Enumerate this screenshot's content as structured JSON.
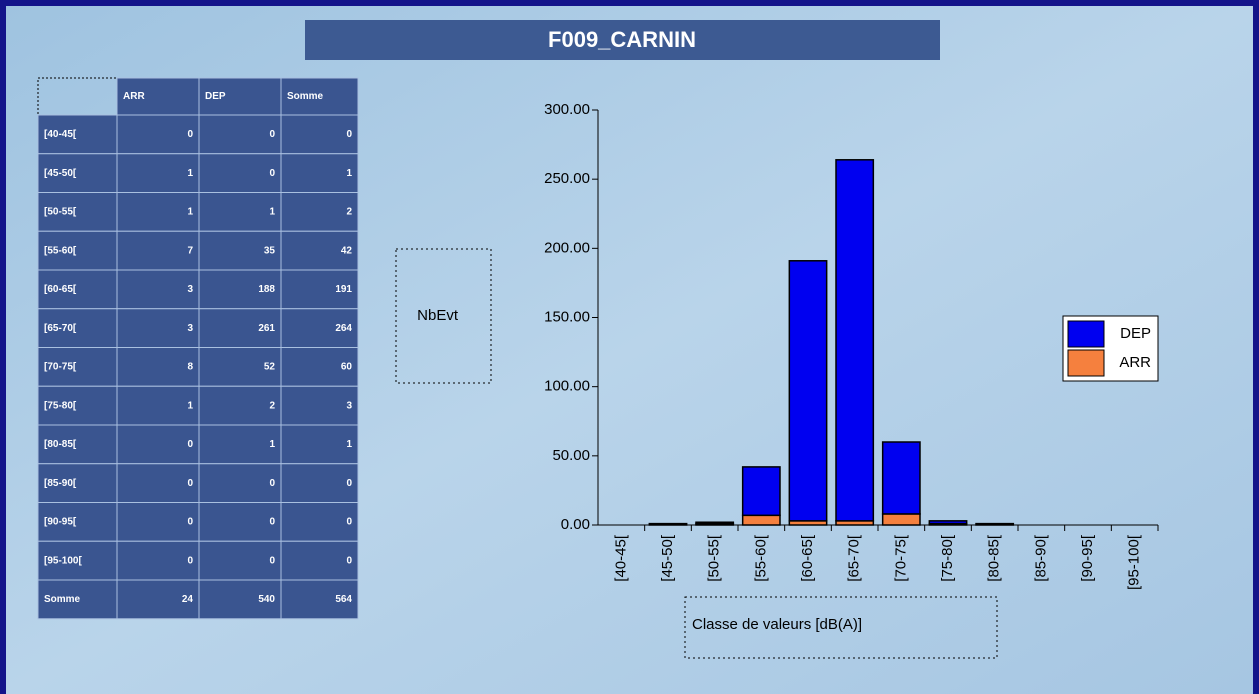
{
  "title": "F009_CARNIN",
  "table": {
    "columns": [
      "ARR",
      "DEP",
      "Somme"
    ],
    "rows": [
      [
        "[40-45[",
        0,
        0,
        0
      ],
      [
        "[45-50[",
        1,
        0,
        1
      ],
      [
        "[50-55[",
        1,
        1,
        2
      ],
      [
        "[55-60[",
        7,
        35,
        42
      ],
      [
        "[60-65[",
        3,
        188,
        191
      ],
      [
        "[65-70[",
        3,
        261,
        264
      ],
      [
        "[70-75[",
        8,
        52,
        60
      ],
      [
        "[75-80[",
        1,
        2,
        3
      ],
      [
        "[80-85[",
        0,
        1,
        1
      ],
      [
        "[85-90[",
        0,
        0,
        0
      ],
      [
        "[90-95[",
        0,
        0,
        0
      ],
      [
        "[95-100[",
        0,
        0,
        0
      ]
    ],
    "footer": [
      "Somme",
      24,
      540,
      564
    ]
  },
  "chart_data": {
    "type": "stacked_bar",
    "ylabel": "NbEvt",
    "xlabel": "Classe de valeurs [dB(A)]",
    "categories": [
      "[40-45[",
      "[45-50[",
      "[50-55[",
      "[55-60[",
      "[60-65[",
      "[65-70[",
      "[70-75[",
      "[75-80[",
      "[80-85[",
      "[85-90[",
      "[90-95[",
      "[95-100["
    ],
    "series": [
      {
        "name": "ARR",
        "color": "#f5803e",
        "values": [
          0,
          1,
          1,
          7,
          3,
          3,
          8,
          1,
          0,
          0,
          0,
          0
        ]
      },
      {
        "name": "DEP",
        "color": "#0000f0",
        "values": [
          0,
          0,
          1,
          35,
          188,
          261,
          52,
          2,
          1,
          0,
          0,
          0
        ]
      }
    ],
    "ylim": [
      0,
      300
    ],
    "yticks": [
      {
        "value": 0,
        "label": "0.00"
      },
      {
        "value": 50,
        "label": "50.00"
      },
      {
        "value": 100,
        "label": "100.00"
      },
      {
        "value": 150,
        "label": "150.00"
      },
      {
        "value": 200,
        "label": "200.00"
      },
      {
        "value": 250,
        "label": "250.00"
      },
      {
        "value": 300,
        "label": "300.00"
      }
    ],
    "legend": "right"
  }
}
